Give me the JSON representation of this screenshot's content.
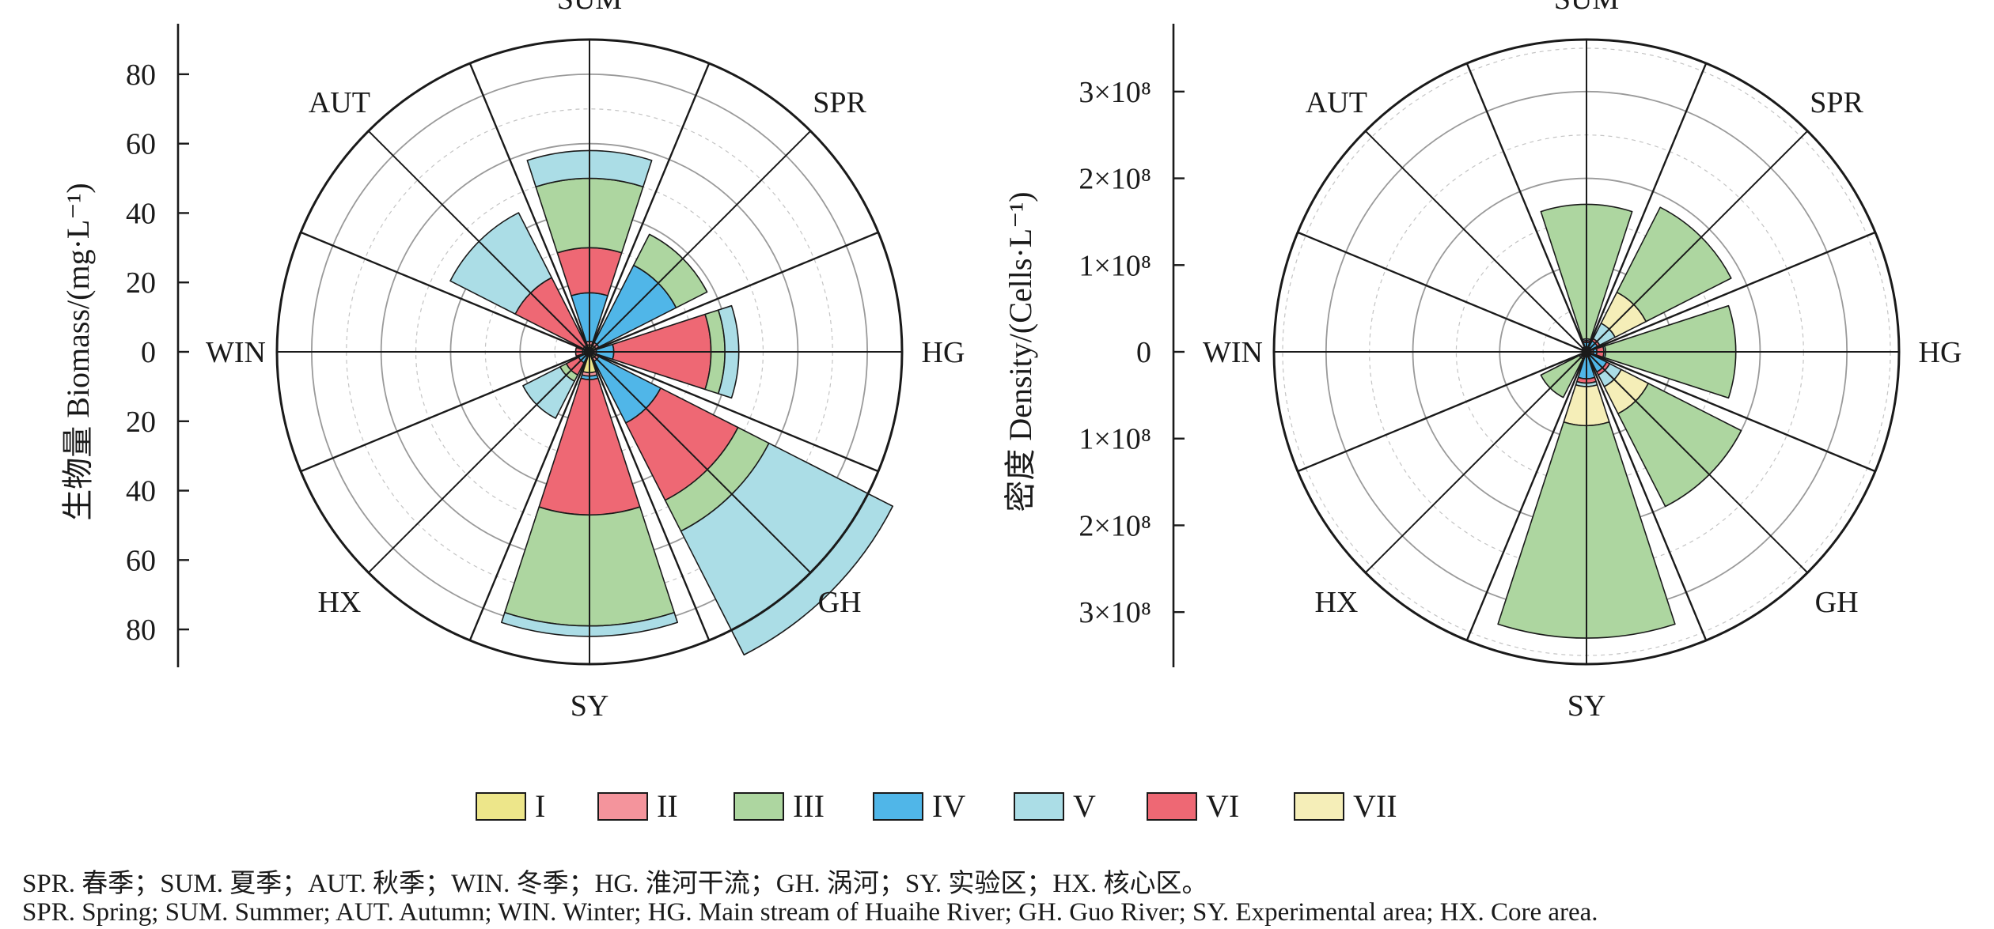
{
  "colors": {
    "I": "#EDE68A",
    "II": "#F4949C",
    "III": "#ADD6A0",
    "IV": "#50B6E8",
    "V": "#ABDDE6",
    "VI": "#EE6874",
    "VII": "#F5EEB8"
  },
  "legend": [
    {
      "key": "I",
      "label": "I"
    },
    {
      "key": "II",
      "label": "II"
    },
    {
      "key": "III",
      "label": "III"
    },
    {
      "key": "IV",
      "label": "IV"
    },
    {
      "key": "V",
      "label": "V"
    },
    {
      "key": "VI",
      "label": "VI"
    },
    {
      "key": "VII",
      "label": "VII"
    }
  ],
  "caption": {
    "cn": "SPR. 春季；SUM. 夏季；AUT. 秋季；WIN. 冬季；HG. 淮河干流；GH. 涡河；SY. 实验区；HX. 核心区。",
    "en": "SPR. Spring; SUM. Summer; AUT. Autumn; WIN. Winter; HG. Main stream of Huaihe River; GH. Guo River; SY. Experimental area; HX. Core area."
  },
  "chart_data": [
    {
      "type": "polar-stacked-bar",
      "ylabel": "生物量 Biomass/(mg·L⁻¹)",
      "sectors": [
        "SUM",
        "SPR",
        "HG",
        "GH",
        "SY",
        "HX",
        "WIN",
        "AUT"
      ],
      "sector_label_order": [
        "SUM",
        "SPR",
        "HG",
        "GH",
        "SY",
        "HX",
        "WIN",
        "AUT"
      ],
      "stack_order": [
        "I",
        "II",
        "IV",
        "VI",
        "III",
        "V",
        "VII"
      ],
      "rmax": 90,
      "ticks": [
        {
          "label": "80",
          "value": 80
        },
        {
          "label": "60",
          "value": 60
        },
        {
          "label": "40",
          "value": 40
        },
        {
          "label": "20",
          "value": 20
        },
        {
          "label": "0",
          "value": 0
        },
        {
          "label": "20",
          "value": 20
        },
        {
          "label": "40",
          "value": 40
        },
        {
          "label": "60",
          "value": 60
        },
        {
          "label": "80",
          "value": 80
        }
      ],
      "series": [
        {
          "name": "I",
          "values": [
            2,
            2,
            1,
            2,
            6,
            1,
            1,
            1
          ]
        },
        {
          "name": "II",
          "values": [
            1,
            1,
            1,
            1,
            1,
            0.5,
            0.5,
            0.5
          ]
        },
        {
          "name": "IV",
          "values": [
            14,
            25,
            5,
            20,
            1,
            2,
            0.5,
            0.5
          ]
        },
        {
          "name": "VI",
          "values": [
            13,
            0,
            28,
            25,
            39,
            4,
            2,
            22
          ]
        },
        {
          "name": "III",
          "values": [
            20,
            10,
            4,
            10,
            32,
            2,
            0,
            0
          ]
        },
        {
          "name": "V",
          "values": [
            8,
            0,
            4,
            40,
            3,
            12,
            0,
            21
          ]
        },
        {
          "name": "VII",
          "values": [
            0,
            0,
            0,
            0,
            0,
            0,
            0,
            0
          ]
        }
      ]
    },
    {
      "type": "polar-stacked-bar",
      "ylabel": "密度 Density/(Cells·L⁻¹)",
      "sectors": [
        "SUM",
        "SPR",
        "HG",
        "GH",
        "SY",
        "HX",
        "WIN",
        "AUT"
      ],
      "sector_label_order": [
        "SUM",
        "SPR",
        "HG",
        "GH",
        "SY",
        "HX",
        "WIN",
        "AUT"
      ],
      "stack_order": [
        "I",
        "II",
        "IV",
        "VI",
        "V",
        "VII",
        "III"
      ],
      "rmax": 360000000,
      "ticks": [
        {
          "label": "3×10⁸",
          "value": 300000000
        },
        {
          "label": "2×10⁸",
          "value": 200000000
        },
        {
          "label": "1×10⁸",
          "value": 100000000
        },
        {
          "label": "0",
          "value": 0
        },
        {
          "label": "1×10⁸",
          "value": 100000000
        },
        {
          "label": "2×10⁸",
          "value": 200000000
        },
        {
          "label": "3×10⁸",
          "value": 300000000
        }
      ],
      "series": [
        {
          "name": "I",
          "values": [
            3000000,
            3000000,
            3000000,
            3000000,
            3000000,
            2000000,
            1000000,
            1000000
          ]
        },
        {
          "name": "II",
          "values": [
            3000000,
            3000000,
            5000000,
            3000000,
            3000000,
            1000000,
            1000000,
            1000000
          ]
        },
        {
          "name": "IV",
          "values": [
            5000000,
            8000000,
            4000000,
            20000000,
            25000000,
            3000000,
            1000000,
            1000000
          ]
        },
        {
          "name": "VI",
          "values": [
            2000000,
            3000000,
            8000000,
            4000000,
            5000000,
            1000000,
            1000000,
            1000000
          ]
        },
        {
          "name": "V",
          "values": [
            2000000,
            20000000,
            2000000,
            15000000,
            4000000,
            2000000,
            1000000,
            2000000
          ]
        },
        {
          "name": "VII",
          "values": [
            0,
            40000000,
            0,
            35000000,
            45000000,
            0,
            0,
            0
          ]
        },
        {
          "name": "III",
          "values": [
            155000000,
            110000000,
            150000000,
            120000000,
            245000000,
            50000000,
            0,
            0
          ]
        }
      ]
    }
  ]
}
